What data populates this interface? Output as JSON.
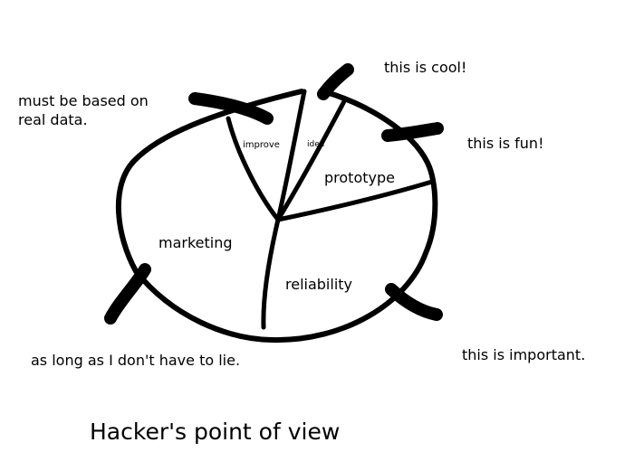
{
  "title": "Hacker's point of view",
  "sections": {
    "improve": "improve",
    "idea": "idea",
    "prototype": "prototype",
    "marketing": "marketing",
    "reliability": "reliability"
  },
  "annotations": {
    "real_data_line1": "must be based on",
    "real_data_line2": "real data.",
    "cool": "this is cool!",
    "fun": "this is fun!",
    "important": "this is important.",
    "lie": "as long as I don't have to lie."
  },
  "colors": {
    "ink": "#000000",
    "background": "#ffffff"
  }
}
